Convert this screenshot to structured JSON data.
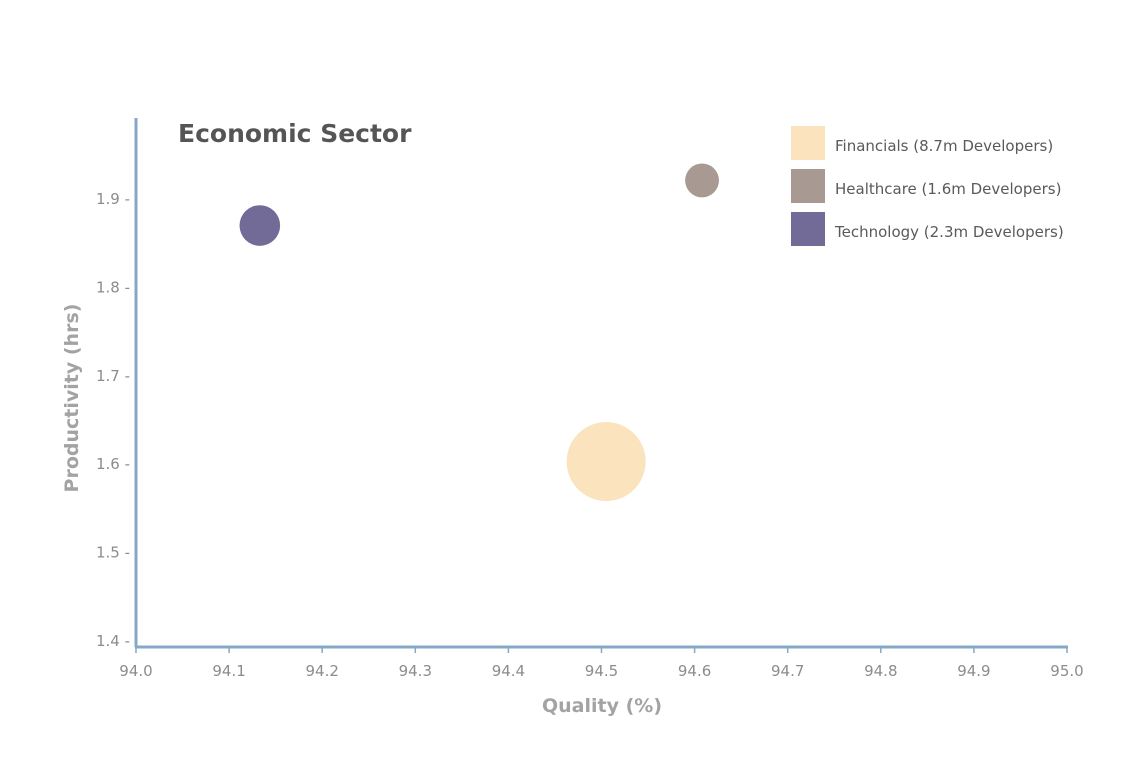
{
  "chart_data": {
    "type": "scatter",
    "title": "Economic Sector",
    "xlabel": "Quality (%)",
    "ylabel": "Productivity (hrs)",
    "xlim": [
      94.0,
      95.0
    ],
    "ylim": [
      1.4,
      2.0
    ],
    "x_ticks": [
      "94.0",
      "94.1",
      "94.2",
      "94.3",
      "94.4",
      "94.5",
      "94.6",
      "94.7",
      "94.8",
      "94.9",
      "95.0"
    ],
    "y_ticks": [
      "1.4 -",
      "1.5 -",
      "1.6 -",
      "1.7 -",
      "1.8 -",
      "1.9 -"
    ],
    "legend_position": "top-right",
    "grid": false,
    "series": [
      {
        "name": "Financials (8.7m Developers)",
        "color": "#fae3bd",
        "developers_m": 8.7,
        "x": 94.505,
        "y": 1.603
      },
      {
        "name": "Healthcare (1.6m Developers)",
        "color": "#a89a92",
        "developers_m": 1.6,
        "x": 94.608,
        "y": 1.921
      },
      {
        "name": "Technology (2.3m Developers)",
        "color": "#736b97",
        "developers_m": 2.3,
        "x": 94.133,
        "y": 1.87
      }
    ],
    "axis_color": "#86a8c8"
  }
}
